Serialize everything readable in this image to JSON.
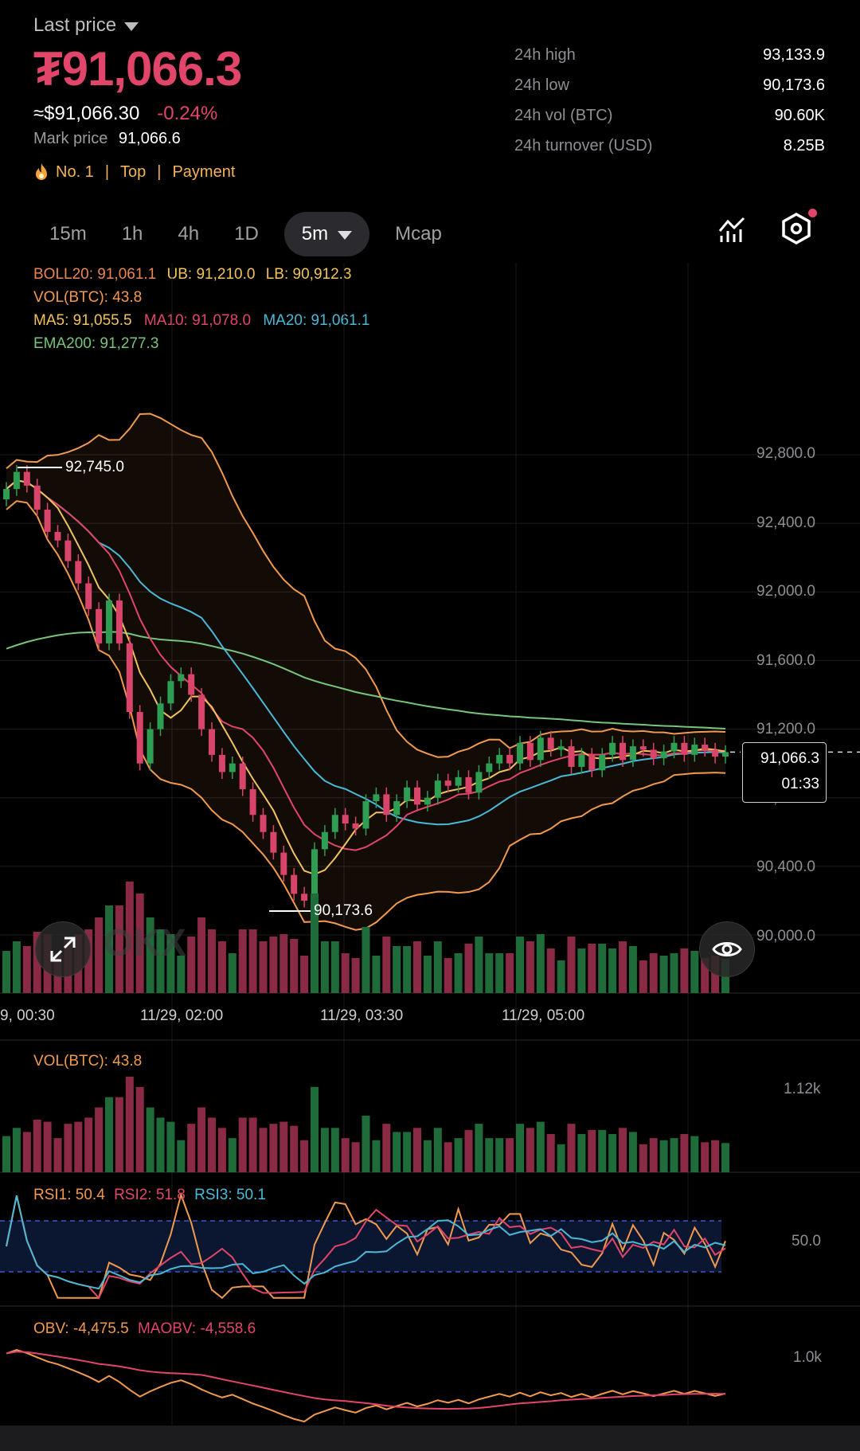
{
  "header": {
    "last_price_label": "Last price",
    "price": "₮91,066.3",
    "usd_price": "≈$91,066.30",
    "change": "-0.24%",
    "mark_price_label": "Mark price",
    "mark_price": "91,066.6",
    "tag_rank": "No. 1",
    "tag_top": "Top",
    "tag_payment": "Payment"
  },
  "stats": [
    {
      "label": "24h high",
      "value": "93,133.9"
    },
    {
      "label": "24h low",
      "value": "90,173.6"
    },
    {
      "label": "24h vol (BTC)",
      "value": "90.60K"
    },
    {
      "label": "24h turnover (USD)",
      "value": "8.25B"
    }
  ],
  "tabs": [
    "15m",
    "1h",
    "4h",
    "1D",
    "5m",
    "Mcap"
  ],
  "active_tab": "5m",
  "indicators": {
    "boll": "BOLL20: 91,061.1",
    "ub": "UB: 91,210.0",
    "lb": "LB: 90,912.3",
    "vol": "VOL(BTC): 43.8",
    "ma5": "MA5: 91,055.5",
    "ma10": "MA10: 91,078.0",
    "ma20": "MA20: 91,061.1",
    "ema200": "EMA200: 91,277.3"
  },
  "chart": {
    "y_labels": [
      "92,800.0",
      "92,400.0",
      "92,000.0",
      "91,600.0",
      "91,200.0",
      "90,800.0",
      "90,400.0",
      "90,000.0"
    ],
    "x_labels": [
      "9, 00:30",
      "11/29, 02:00",
      "11/29, 03:30",
      "11/29, 05:00"
    ],
    "high_marker": "92,745.0",
    "low_marker": "90,173.6",
    "current_price": "91,066.3",
    "countdown": "01:33",
    "watermark": "OKX"
  },
  "chart_data": {
    "type": "candlestick",
    "ylim": [
      89950,
      93150
    ],
    "close_series": [
      92600,
      92700,
      92620,
      92480,
      92350,
      92300,
      92180,
      92050,
      91900,
      91700,
      91950,
      91700,
      91300,
      91000,
      91200,
      91350,
      91480,
      91520,
      91400,
      91200,
      91050,
      90950,
      91000,
      90850,
      90700,
      90600,
      90480,
      90350,
      90240,
      90200,
      90500,
      90600,
      90700,
      90650,
      90620,
      90780,
      90820,
      90700,
      90780,
      90860,
      90760,
      90800,
      90900,
      90870,
      90920,
      90830,
      90950,
      91000,
      91050,
      91000,
      91120,
      91020,
      91150,
      91080,
      91100,
      90980,
      91050,
      90960,
      91050,
      91120,
      91020,
      91100,
      91080,
      91030,
      91070,
      91120,
      91050,
      91110,
      91080,
      91040,
      91066
    ]
  },
  "vol_panel": {
    "label": "VOL(BTC): 43.8",
    "y_label": "1.12k"
  },
  "rsi_panel": {
    "rsi1": "RSI1: 50.4",
    "rsi2": "RSI2: 51.8",
    "rsi3": "RSI3: 50.1",
    "y_label": "50.0"
  },
  "obv_panel": {
    "obv": "OBV: -4,475.5",
    "maobv": "MAOBV: -4,558.6",
    "y_label": "1.0k"
  },
  "colors": {
    "up": "#2e9e53",
    "down": "#d9456a",
    "price": "#e2456a",
    "ma5": "#f2c25b",
    "ma10": "#e2456a",
    "ma20": "#49b9d6",
    "ema200": "#76c57a",
    "boll": "#f19a4e"
  }
}
